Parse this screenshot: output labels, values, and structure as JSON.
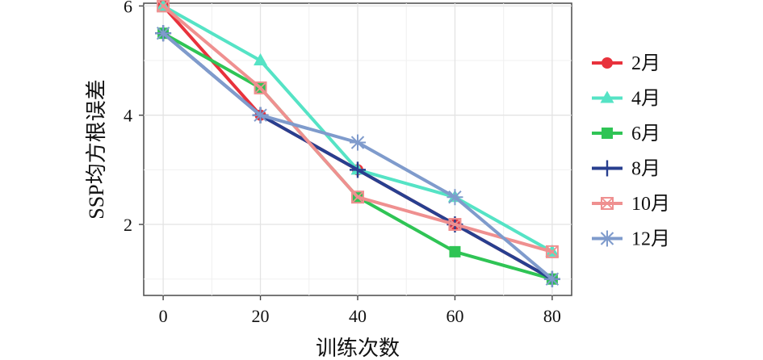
{
  "chart_data": {
    "type": "line",
    "title": "",
    "xlabel": "训练次数",
    "ylabel": "SSP均方根误差",
    "x": [
      0,
      20,
      40,
      60,
      80
    ],
    "xlim": [
      -4,
      84
    ],
    "ylim": [
      0.7,
      6.05
    ],
    "x_ticks": [
      0,
      20,
      40,
      60,
      80
    ],
    "y_ticks": [
      2,
      4,
      6
    ],
    "grid": true,
    "legend_position": "right",
    "series": [
      {
        "name": "2月",
        "values": [
          6.0,
          4.0,
          3.0,
          2.0,
          1.0
        ],
        "color": "#e8323c",
        "marker": "circle"
      },
      {
        "name": "4月",
        "values": [
          6.0,
          5.0,
          3.0,
          2.5,
          1.5
        ],
        "color": "#55e3c5",
        "marker": "triangle"
      },
      {
        "name": "6月",
        "values": [
          5.5,
          4.5,
          2.5,
          1.5,
          1.0
        ],
        "color": "#2fc455",
        "marker": "square"
      },
      {
        "name": "8月",
        "values": [
          5.5,
          4.0,
          3.0,
          2.0,
          1.0
        ],
        "color": "#283f8f",
        "marker": "plus"
      },
      {
        "name": "10月",
        "values": [
          6.0,
          4.5,
          2.5,
          2.0,
          1.5
        ],
        "color": "#ef9090",
        "marker": "square-x"
      },
      {
        "name": "12月",
        "values": [
          5.5,
          4.0,
          3.5,
          2.5,
          1.0
        ],
        "color": "#7f9bcc",
        "marker": "asterisk"
      }
    ]
  }
}
